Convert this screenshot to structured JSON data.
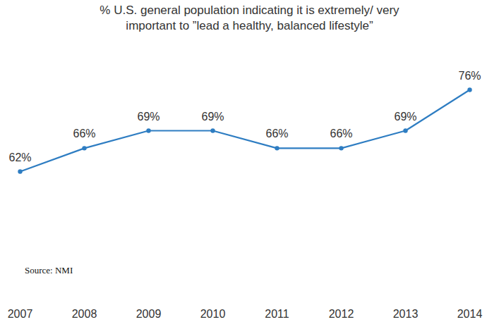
{
  "chart_data": {
    "type": "line",
    "title": "% U.S. general population indicating it is extremely/ very important to ”lead a healthy, balanced lifestyle”",
    "categories": [
      "2007",
      "2008",
      "2009",
      "2010",
      "2011",
      "2012",
      "2013",
      "2014"
    ],
    "values": [
      62,
      66,
      69,
      69,
      66,
      66,
      69,
      76
    ],
    "value_labels": [
      "62%",
      "66%",
      "69%",
      "69%",
      "66%",
      "66%",
      "69%",
      "76%"
    ],
    "color": "#2e7dc2",
    "marker": "circle",
    "data_labels": true,
    "tick_labels": "x",
    "annotations": [
      "Source: NMI"
    ]
  }
}
